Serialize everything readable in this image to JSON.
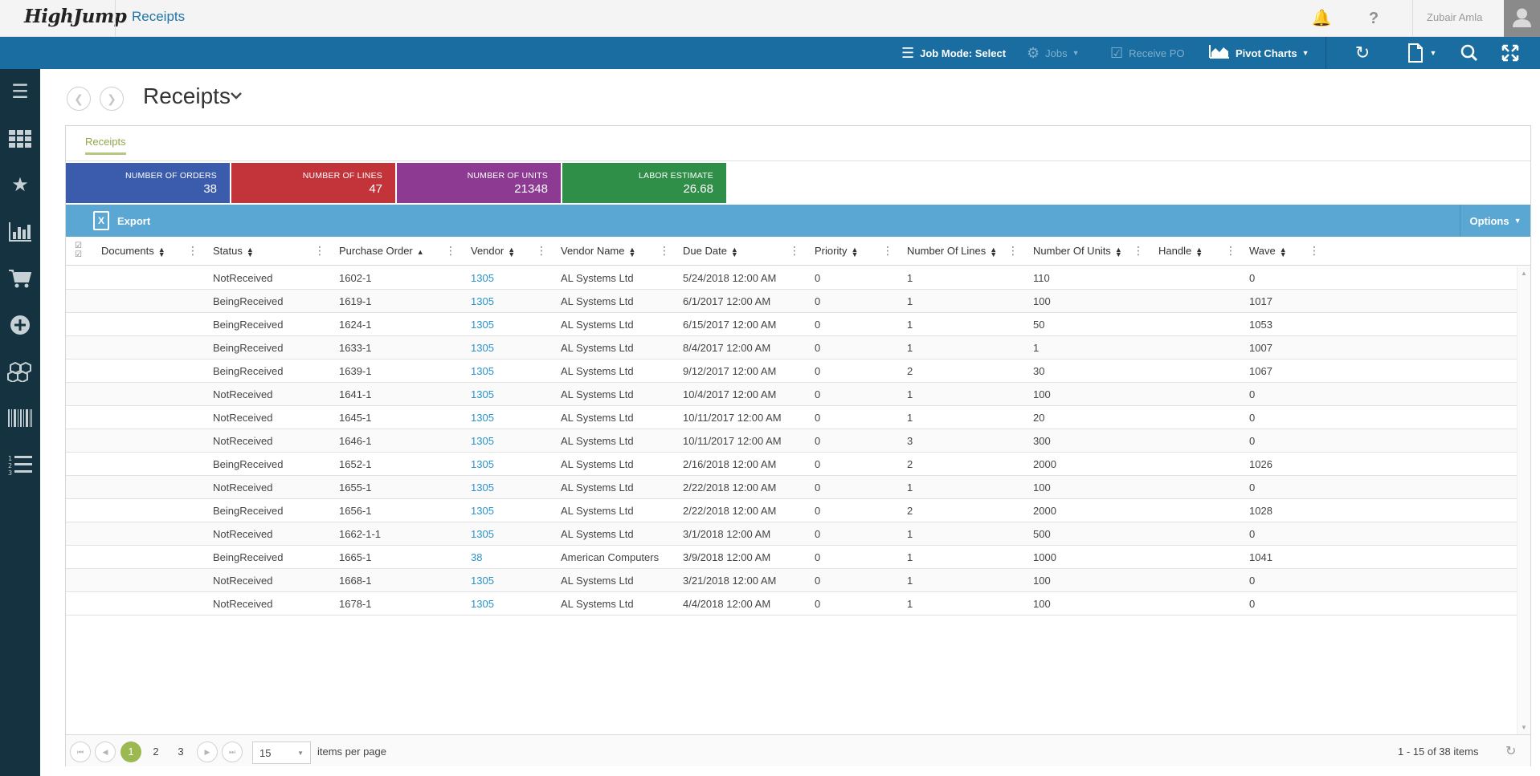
{
  "header": {
    "logo": "HighJump",
    "app_title": "Receipts",
    "user_name": "Zubair Amla"
  },
  "toolbar": {
    "job_mode": "Job Mode: Select",
    "jobs": "Jobs",
    "receive_po": "Receive PO",
    "pivot_charts": "Pivot Charts"
  },
  "page": {
    "title": "Receipts",
    "tab": "Receipts"
  },
  "tiles": [
    {
      "label": "NUMBER OF ORDERS",
      "value": "38",
      "color": "#3b5cad"
    },
    {
      "label": "NUMBER OF LINES",
      "value": "47",
      "color": "#c2343a"
    },
    {
      "label": "NUMBER OF UNITS",
      "value": "21348",
      "color": "#8d3a93"
    },
    {
      "label": "LABOR ESTIMATE",
      "value": "26.68",
      "color": "#2f8e48"
    }
  ],
  "grid_toolbar": {
    "export": "Export",
    "options": "Options"
  },
  "columns": [
    "Documents",
    "Status",
    "Purchase Order",
    "Vendor",
    "Vendor Name",
    "Due Date",
    "Priority",
    "Number Of Lines",
    "Number Of Units",
    "Handle",
    "Wave"
  ],
  "rows": [
    [
      "",
      "NotReceived",
      "1602-1",
      "1305",
      "AL Systems Ltd",
      "5/24/2018 12:00 AM",
      "0",
      "1",
      "110",
      "",
      "0"
    ],
    [
      "",
      "BeingReceived",
      "1619-1",
      "1305",
      "AL Systems Ltd",
      "6/1/2017 12:00 AM",
      "0",
      "1",
      "100",
      "",
      "1017"
    ],
    [
      "",
      "BeingReceived",
      "1624-1",
      "1305",
      "AL Systems Ltd",
      "6/15/2017 12:00 AM",
      "0",
      "1",
      "50",
      "",
      "1053"
    ],
    [
      "",
      "BeingReceived",
      "1633-1",
      "1305",
      "AL Systems Ltd",
      "8/4/2017 12:00 AM",
      "0",
      "1",
      "1",
      "",
      "1007"
    ],
    [
      "",
      "BeingReceived",
      "1639-1",
      "1305",
      "AL Systems Ltd",
      "9/12/2017 12:00 AM",
      "0",
      "2",
      "30",
      "",
      "1067"
    ],
    [
      "",
      "NotReceived",
      "1641-1",
      "1305",
      "AL Systems Ltd",
      "10/4/2017 12:00 AM",
      "0",
      "1",
      "100",
      "",
      "0"
    ],
    [
      "",
      "NotReceived",
      "1645-1",
      "1305",
      "AL Systems Ltd",
      "10/11/2017 12:00 AM",
      "0",
      "1",
      "20",
      "",
      "0"
    ],
    [
      "",
      "NotReceived",
      "1646-1",
      "1305",
      "AL Systems Ltd",
      "10/11/2017 12:00 AM",
      "0",
      "3",
      "300",
      "",
      "0"
    ],
    [
      "",
      "BeingReceived",
      "1652-1",
      "1305",
      "AL Systems Ltd",
      "2/16/2018 12:00 AM",
      "0",
      "2",
      "2000",
      "",
      "1026"
    ],
    [
      "",
      "NotReceived",
      "1655-1",
      "1305",
      "AL Systems Ltd",
      "2/22/2018 12:00 AM",
      "0",
      "1",
      "100",
      "",
      "0"
    ],
    [
      "",
      "BeingReceived",
      "1656-1",
      "1305",
      "AL Systems Ltd",
      "2/22/2018 12:00 AM",
      "0",
      "2",
      "2000",
      "",
      "1028"
    ],
    [
      "",
      "NotReceived",
      "1662-1-1",
      "1305",
      "AL Systems Ltd",
      "3/1/2018 12:00 AM",
      "0",
      "1",
      "500",
      "",
      "0"
    ],
    [
      "",
      "BeingReceived",
      "1665-1",
      "38",
      "American Computers",
      "3/9/2018 12:00 AM",
      "0",
      "1",
      "1000",
      "",
      "1041"
    ],
    [
      "",
      "NotReceived",
      "1668-1",
      "1305",
      "AL Systems Ltd",
      "3/21/2018 12:00 AM",
      "0",
      "1",
      "100",
      "",
      "0"
    ],
    [
      "",
      "NotReceived",
      "1678-1",
      "1305",
      "AL Systems Ltd",
      "4/4/2018 12:00 AM",
      "0",
      "1",
      "100",
      "",
      "0"
    ]
  ],
  "pager": {
    "pages": [
      "1",
      "2",
      "3"
    ],
    "current_page": "1",
    "page_size": "15",
    "per_page_label": "items per page",
    "info": "1 - 15 of 38 items"
  },
  "icons": {
    "sidebar": [
      "menu-icon",
      "apps-grid-icon",
      "star-icon",
      "bar-chart-icon",
      "cart-icon",
      "add-circle-icon",
      "boxes-icon",
      "barcode-icon",
      "numbered-list-icon"
    ],
    "toolbar_right": [
      "refresh-icon",
      "document-icon",
      "search-icon",
      "fullscreen-icon"
    ]
  }
}
